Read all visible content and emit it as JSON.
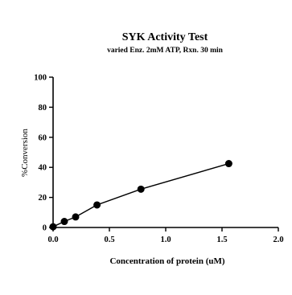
{
  "chart_data": {
    "type": "line",
    "title": "SYK Activity Test",
    "subtitle": "varied Enz. 2mM ATP, Rxn. 30 min",
    "xlabel": "Concentration of protein (uM)",
    "ylabel": "%Conversion",
    "xlim": [
      0.0,
      2.0
    ],
    "ylim": [
      0,
      100
    ],
    "x_ticks": [
      0.0,
      0.5,
      1.0,
      1.5,
      2.0
    ],
    "x_tick_labels": [
      "0.0",
      "0.5",
      "1.0",
      "1.5",
      "2.0"
    ],
    "y_ticks": [
      0,
      20,
      40,
      60,
      80,
      100
    ],
    "y_tick_labels": [
      "0",
      "20",
      "40",
      "60",
      "80",
      "100"
    ],
    "grid": false,
    "series": [
      {
        "x": [
          0.0,
          0.1,
          0.2,
          0.39,
          0.78,
          1.56
        ],
        "y": [
          0.5,
          4,
          7,
          15,
          25.5,
          42.5
        ]
      }
    ],
    "colors": {
      "line": "#000000",
      "marker": "#000000"
    }
  }
}
